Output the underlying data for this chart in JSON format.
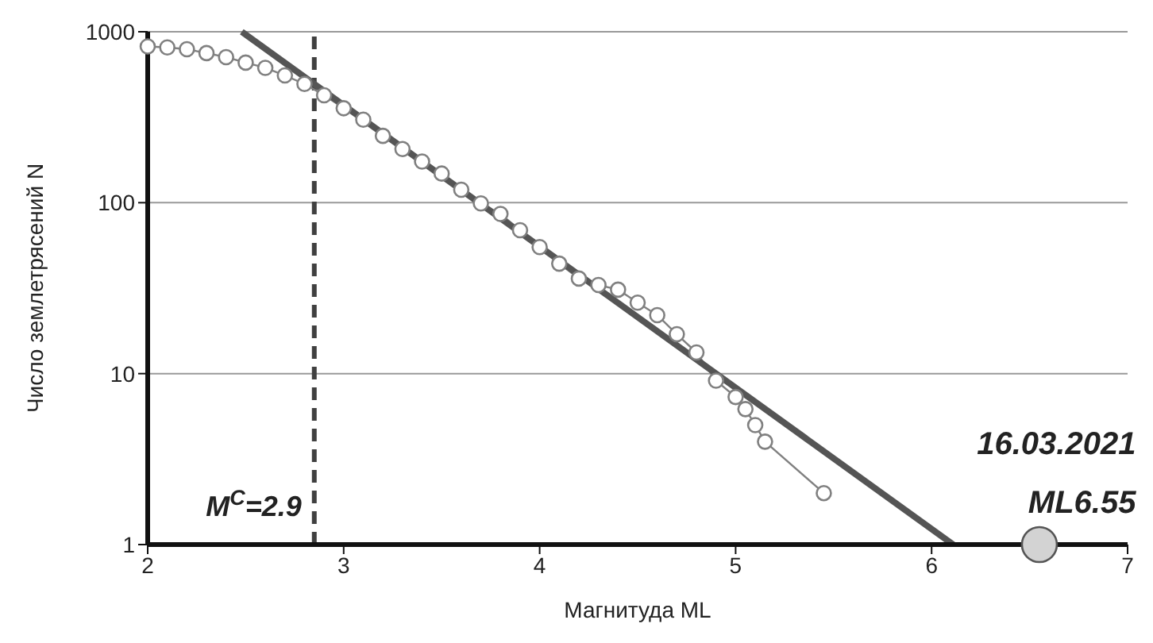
{
  "chart_data": {
    "type": "line",
    "xlabel": "Магнитуда ML",
    "ylabel": "Число землетрясений N",
    "log": "y",
    "xlim": [
      2,
      7
    ],
    "xticks": [
      2,
      3,
      4,
      5,
      6,
      7
    ],
    "ylim": [
      1,
      1000
    ],
    "yticks": [
      1,
      10,
      100,
      1000
    ],
    "grid": "y",
    "series": [
      {
        "color": "#808080",
        "marker": "circle",
        "x": [
          2.0,
          2.1,
          2.2,
          2.3,
          2.4,
          2.5,
          2.6,
          2.7,
          2.8,
          2.9,
          3.0,
          3.1,
          3.2,
          3.3,
          3.4,
          3.5,
          3.6,
          3.7,
          3.8,
          3.9,
          4.0,
          4.1,
          4.2,
          4.3,
          4.4,
          4.5,
          4.6,
          4.7,
          4.8,
          4.9,
          5.0,
          5.05,
          5.1,
          5.15,
          5.45
        ],
        "values": [
          820,
          810,
          790,
          750,
          710,
          660,
          615,
          555,
          495,
          425,
          357,
          306,
          246,
          206,
          174,
          148,
          119,
          99,
          86,
          69,
          55,
          44,
          36,
          33,
          31,
          26,
          22,
          17,
          13.3,
          9.1,
          7.3,
          6.2,
          5,
          4,
          2
        ]
      },
      {
        "type": "scatter",
        "color": "#d3d3d3",
        "marker": "circle",
        "x": [
          6.55
        ],
        "values": [
          1
        ]
      },
      {
        "type": "line",
        "color": "#555555",
        "marker": "none",
        "x": [
          2.48,
          6.11
        ],
        "values": [
          1000,
          1
        ]
      }
    ],
    "ref_lines": [
      {
        "axis": "x",
        "value": 2.85,
        "label": "M$^{C}$=2.9",
        "color": "#404040",
        "line_style": "dashed"
      }
    ],
    "annotations": [
      "16.03.2021",
      "ML6.55"
    ]
  }
}
